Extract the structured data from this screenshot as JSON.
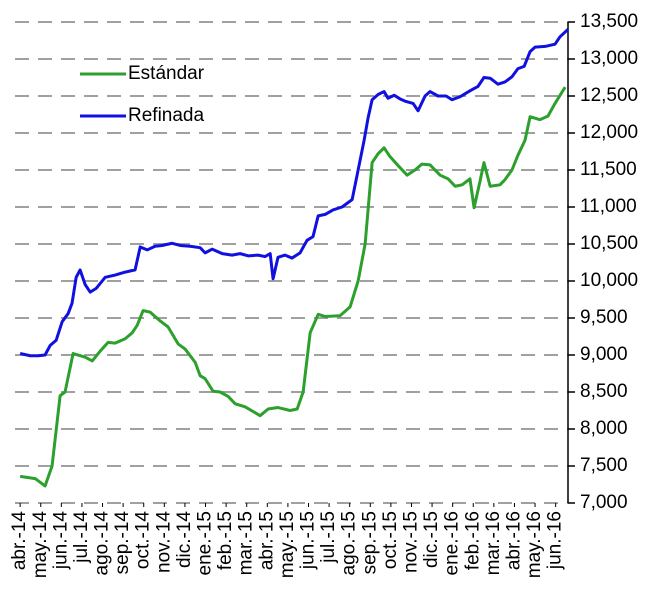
{
  "chart_data": {
    "type": "line",
    "xticks": [
      {
        "value": 0,
        "label": "abr.-14"
      },
      {
        "value": 1,
        "label": "may.-14"
      },
      {
        "value": 2,
        "label": "jun.-14"
      },
      {
        "value": 3,
        "label": "jul.-14"
      },
      {
        "value": 4,
        "label": "ago.-14"
      },
      {
        "value": 5,
        "label": "sep.-14"
      },
      {
        "value": 6,
        "label": "oct.-14"
      },
      {
        "value": 7,
        "label": "nov.-14"
      },
      {
        "value": 8,
        "label": "dic.-14"
      },
      {
        "value": 9,
        "label": "ene.-15"
      },
      {
        "value": 10,
        "label": "feb.-15"
      },
      {
        "value": 11,
        "label": "mar.-15"
      },
      {
        "value": 12,
        "label": "abr.-15"
      },
      {
        "value": 13,
        "label": "may.-15"
      },
      {
        "value": 14,
        "label": "jun.-15"
      },
      {
        "value": 15,
        "label": "jul.-15"
      },
      {
        "value": 16,
        "label": "ago.-15"
      },
      {
        "value": 17,
        "label": "sep.-15"
      },
      {
        "value": 18,
        "label": "oct.-15"
      },
      {
        "value": 19,
        "label": "nov.-15"
      },
      {
        "value": 20,
        "label": "dic.-15"
      },
      {
        "value": 21,
        "label": "ene.-16"
      },
      {
        "value": 22,
        "label": "feb.-16"
      },
      {
        "value": 23,
        "label": "mar.-16"
      },
      {
        "value": 24,
        "label": "abr.-16"
      },
      {
        "value": 25,
        "label": "may.-16"
      },
      {
        "value": 26,
        "label": "jun.-16"
      }
    ],
    "xlim": [
      -0.25,
      26.6
    ],
    "ylim": [
      7000,
      13500
    ],
    "yticks": [
      {
        "value": 7000,
        "label": "7,000"
      },
      {
        "value": 7500,
        "label": "7,500"
      },
      {
        "value": 8000,
        "label": "8,000"
      },
      {
        "value": 8500,
        "label": "8,500"
      },
      {
        "value": 9000,
        "label": "9,000"
      },
      {
        "value": 9500,
        "label": "9,500"
      },
      {
        "value": 10000,
        "label": "10,000"
      },
      {
        "value": 10500,
        "label": "10,500"
      },
      {
        "value": 11000,
        "label": "11,000"
      },
      {
        "value": 11500,
        "label": "11,500"
      },
      {
        "value": 12000,
        "label": "12,000"
      },
      {
        "value": 12500,
        "label": "12,500"
      },
      {
        "value": 13000,
        "label": "13,000"
      },
      {
        "value": 13500,
        "label": "13,500"
      }
    ],
    "grid": true,
    "y_axis_side": "right",
    "legend": "upper-left",
    "series": [
      {
        "name": "Estándar",
        "color": "#2ca02c",
        "x": [
          0,
          0.73,
          1.21,
          1.55,
          1.94,
          2.18,
          2.57,
          3.16,
          3.5,
          3.88,
          4.27,
          4.61,
          5.1,
          5.44,
          5.68,
          5.97,
          6.31,
          6.8,
          7.18,
          7.67,
          8.01,
          8.5,
          8.74,
          8.98,
          9.37,
          9.71,
          10.1,
          10.44,
          10.92,
          11.41,
          11.65,
          12.04,
          12.52,
          13.11,
          13.45,
          13.74,
          14.08,
          14.47,
          14.81,
          15.53,
          16.02,
          16.41,
          16.75,
          17.09,
          17.38,
          17.67,
          17.96,
          18.35,
          18.79,
          19.17,
          19.51,
          19.9,
          20.39,
          20.78,
          21.12,
          21.46,
          21.84,
          22.04,
          22.33,
          22.52,
          22.82,
          23.3,
          23.54,
          23.88,
          24.17,
          24.51,
          24.76,
          25.24,
          25.63,
          25.97,
          26.46
        ],
        "values": [
          7360,
          7330,
          7230,
          7500,
          8450,
          8500,
          9020,
          8970,
          8920,
          9050,
          9170,
          9160,
          9220,
          9300,
          9400,
          9600,
          9580,
          9460,
          9380,
          9150,
          9080,
          8900,
          8720,
          8680,
          8510,
          8500,
          8440,
          8340,
          8300,
          8220,
          8180,
          8270,
          8290,
          8250,
          8270,
          8500,
          9300,
          9550,
          9520,
          9530,
          9650,
          10000,
          10500,
          11600,
          11720,
          11800,
          11680,
          11560,
          11430,
          11500,
          11580,
          11570,
          11430,
          11380,
          11280,
          11300,
          11380,
          10990,
          11350,
          11600,
          11280,
          11300,
          11370,
          11500,
          11700,
          11900,
          12220,
          12180,
          12230,
          12400,
          12620
        ]
      },
      {
        "name": "Refinada",
        "color": "#1010e0",
        "x": [
          0,
          0.49,
          0.87,
          1.21,
          1.46,
          1.75,
          2.04,
          2.33,
          2.52,
          2.72,
          2.91,
          3.16,
          3.4,
          3.69,
          4.13,
          4.61,
          5.1,
          5.58,
          5.83,
          6.17,
          6.55,
          6.89,
          7.38,
          7.77,
          8.25,
          8.74,
          8.98,
          9.32,
          9.81,
          10.29,
          10.68,
          11.07,
          11.55,
          11.89,
          12.14,
          12.28,
          12.52,
          12.86,
          13.2,
          13.59,
          13.93,
          14.22,
          14.47,
          14.81,
          15.19,
          15.63,
          16.12,
          16.41,
          16.7,
          16.89,
          17.09,
          17.38,
          17.67,
          17.86,
          18.16,
          18.45,
          18.69,
          19.08,
          19.32,
          19.66,
          19.9,
          20.29,
          20.68,
          20.97,
          21.36,
          21.84,
          22.23,
          22.52,
          22.82,
          23.2,
          23.54,
          23.88,
          24.17,
          24.47,
          24.76,
          25,
          25.49,
          25.97,
          26.21,
          26.6
        ],
        "values": [
          9020,
          8990,
          8990,
          9000,
          9130,
          9200,
          9450,
          9560,
          9700,
          10050,
          10150,
          9950,
          9850,
          9900,
          10050,
          10080,
          10120,
          10150,
          10460,
          10420,
          10470,
          10480,
          10510,
          10480,
          10470,
          10450,
          10380,
          10430,
          10370,
          10350,
          10370,
          10340,
          10350,
          10330,
          10370,
          10030,
          10320,
          10350,
          10310,
          10380,
          10550,
          10600,
          10880,
          10900,
          10960,
          11000,
          11100,
          11500,
          11900,
          12200,
          12450,
          12520,
          12560,
          12470,
          12510,
          12460,
          12430,
          12400,
          12300,
          12500,
          12560,
          12500,
          12500,
          12450,
          12490,
          12570,
          12630,
          12750,
          12740,
          12660,
          12690,
          12760,
          12870,
          12900,
          13100,
          13160,
          13170,
          13200,
          13300,
          13400
        ]
      }
    ]
  }
}
